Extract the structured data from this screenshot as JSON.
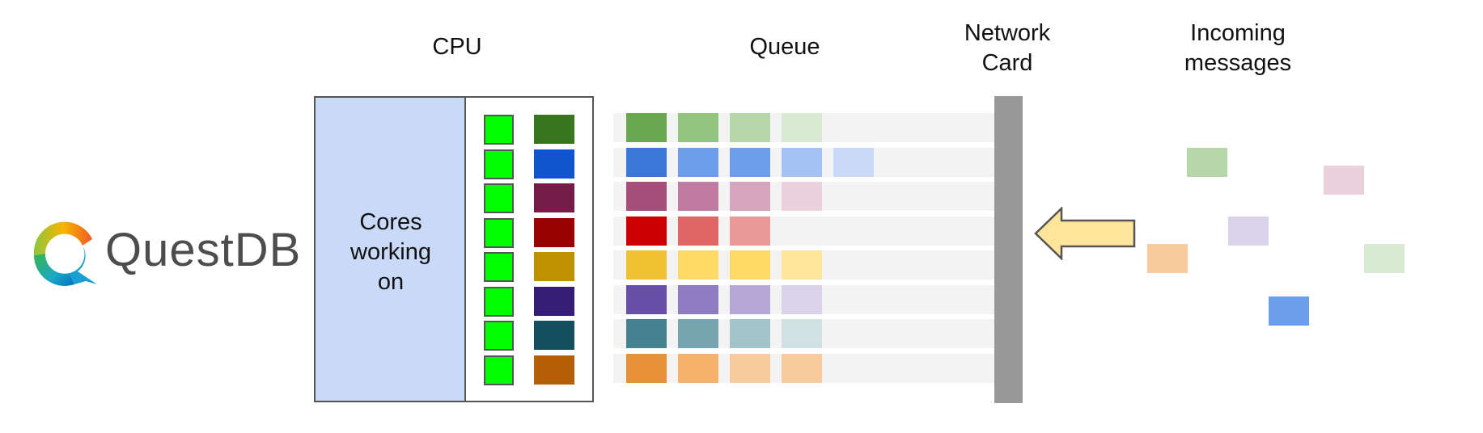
{
  "titles": {
    "cpu": "CPU",
    "queue": "Queue",
    "network_card": "Network\nCard",
    "incoming": "Incoming\nmessages"
  },
  "logo": {
    "text": "QuestDB"
  },
  "cpu": {
    "cores_label": "Cores\nworking\non",
    "core_status_color": "#00ff00",
    "job_colors": [
      "#38761d",
      "#1155cc",
      "#741b47",
      "#990000",
      "#bf9000",
      "#351c75",
      "#134f5c",
      "#b45f06"
    ]
  },
  "queue": {
    "lane_color": "#f3f3f3",
    "lanes": [
      [
        "#6aa84f",
        "#93c47d",
        "#b6d7a8",
        "#d9ead3"
      ],
      [
        "#3c78d8",
        "#6d9eeb",
        "#6d9eeb",
        "#a4c2f4",
        "#c9daf8"
      ],
      [
        "#a64d79",
        "#c27ba0",
        "#d5a6bd",
        "#ead1dc"
      ],
      [
        "#cc0000",
        "#e06666",
        "#ea9999"
      ],
      [
        "#f1c232",
        "#ffd966",
        "#ffd966",
        "#ffe599"
      ],
      [
        "#674ea7",
        "#8e7cc3",
        "#b4a7d6",
        "#d9d2e9"
      ],
      [
        "#45818e",
        "#76a5af",
        "#a2c4c9",
        "#d0e0e3"
      ],
      [
        "#e69138",
        "#f6b26b",
        "#f9cb9c",
        "#f9cb9c"
      ]
    ]
  },
  "network_card": {
    "color": "#999999"
  },
  "arrow": {
    "fill": "#ffe599",
    "stroke": "#555555"
  },
  "incoming_messages": [
    {
      "color": "#b6d7a8"
    },
    {
      "color": "#ead1dc"
    },
    {
      "color": "#d9d2e9"
    },
    {
      "color": "#f9cb9c"
    },
    {
      "color": "#d9ead3"
    },
    {
      "color": "#6d9eeb"
    }
  ]
}
